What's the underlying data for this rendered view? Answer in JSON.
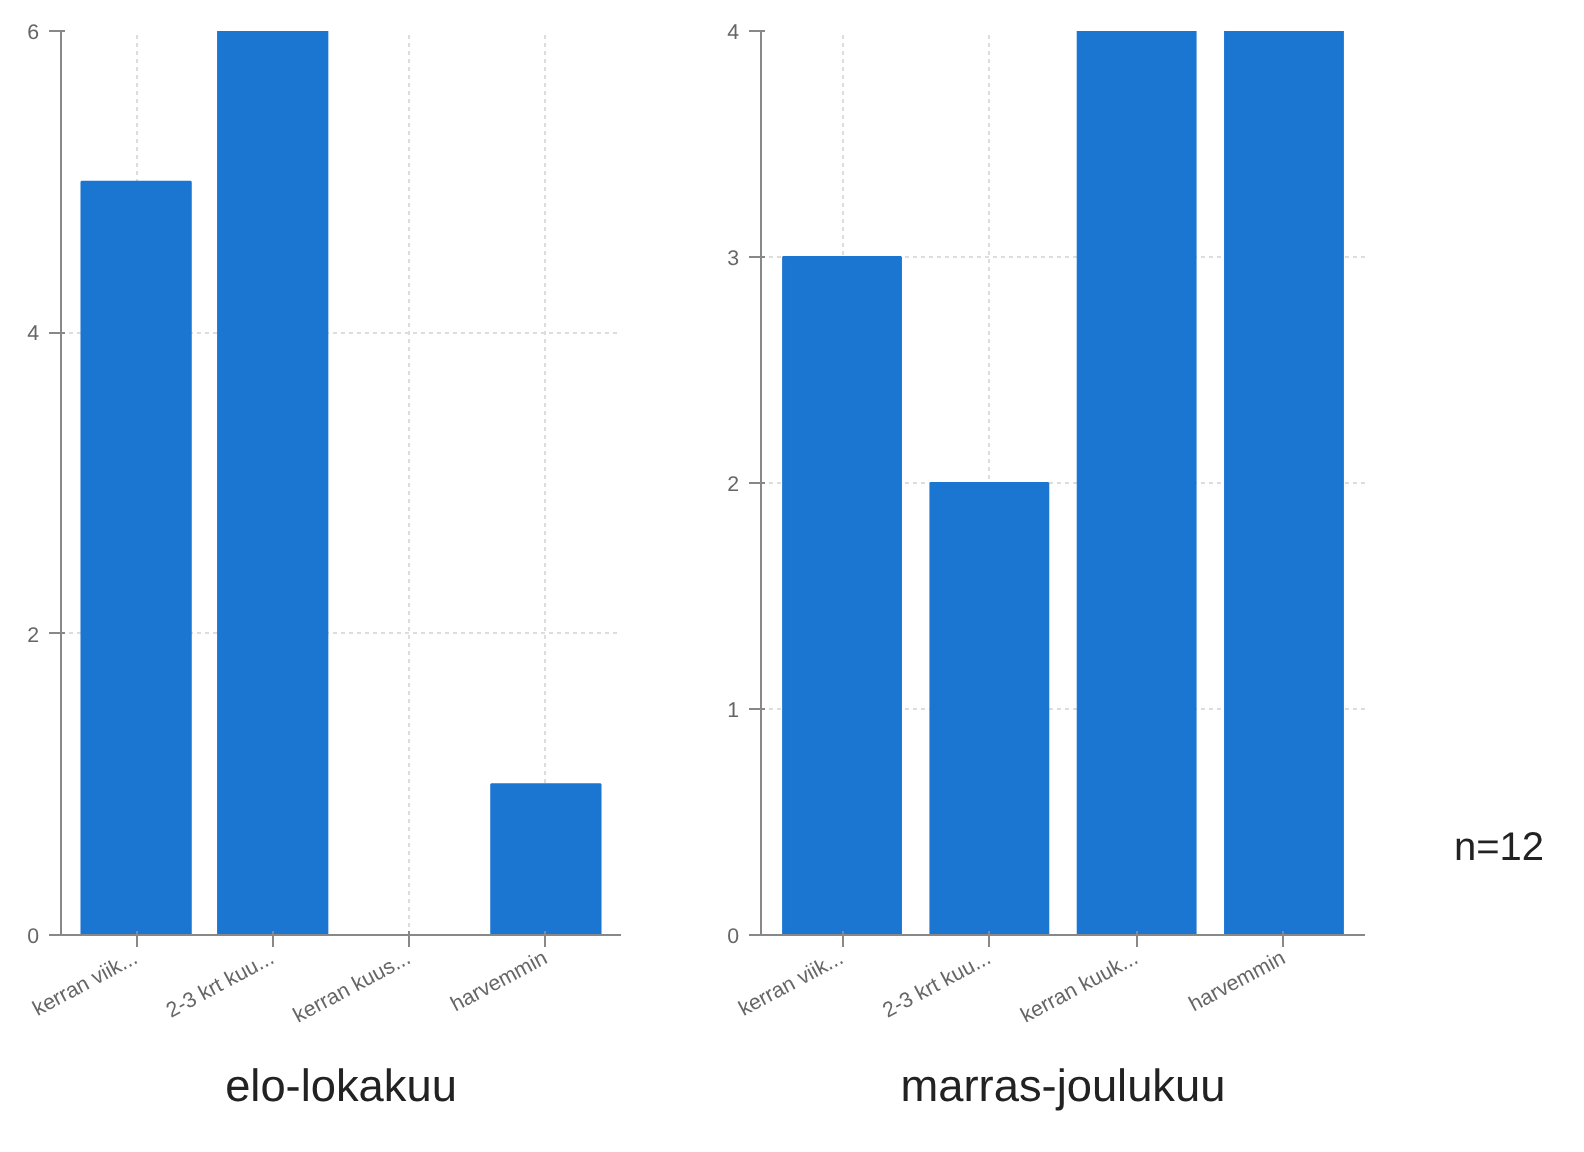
{
  "chart_data": [
    {
      "type": "bar",
      "title": "elo-lokakuu",
      "categories": [
        "kerran viik...",
        "2-3 krt kuu...",
        "kerran kuus...",
        "harvemmin"
      ],
      "values": [
        5,
        6,
        0,
        1
      ],
      "color": "#1b76d2",
      "ylim": [
        0,
        6
      ],
      "yticks": [
        0,
        2,
        4,
        6
      ],
      "grid": true
    },
    {
      "type": "bar",
      "title": "marras-joulukuu",
      "categories": [
        "kerran viik...",
        "2-3 krt kuu...",
        "kerran kuuk...",
        "harvemmin"
      ],
      "values": [
        3,
        2,
        4,
        4
      ],
      "color": "#1b76d2",
      "ylim": [
        0,
        4
      ],
      "yticks": [
        0,
        1,
        2,
        3,
        4
      ],
      "grid": true,
      "annotations": [
        "n=12"
      ]
    }
  ]
}
